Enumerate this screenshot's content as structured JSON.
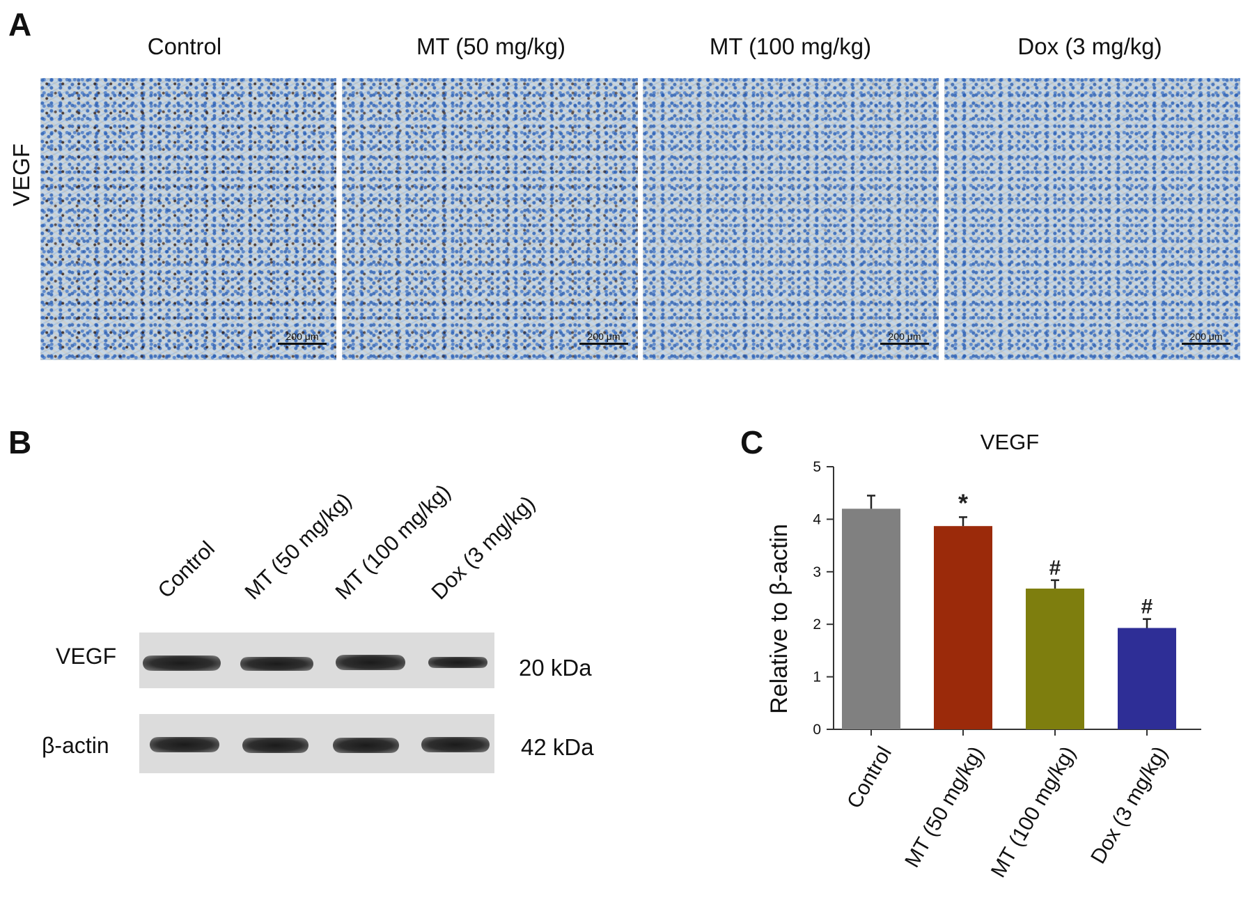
{
  "panel_a": {
    "letter": "A",
    "row_label": "VEGF",
    "columns": [
      {
        "title": "Control",
        "scale": "200 μm",
        "stain": 0.9
      },
      {
        "title": "MT (50 mg/kg)",
        "scale": "200 μm",
        "stain": 0.75
      },
      {
        "title": "MT (100 mg/kg)",
        "scale": "200 μm",
        "stain": 0.25
      },
      {
        "title": "Dox (3 mg/kg)",
        "scale": "200 μm",
        "stain": 0.05
      }
    ]
  },
  "panel_b": {
    "letter": "B",
    "lanes": [
      "Control",
      "MT (50 mg/kg)",
      "MT (100 mg/kg)",
      "Dox (3 mg/kg)"
    ],
    "blots": [
      {
        "label": "VEGF",
        "kda": "20 kDa"
      },
      {
        "label": "β-actin",
        "kda": "42 kDa"
      }
    ]
  },
  "panel_c": {
    "letter": "C",
    "chart_data": {
      "type": "bar",
      "title": "VEGF",
      "ylabel": "Relative to β-actin",
      "xlabel": "",
      "ylim": [
        0,
        5
      ],
      "yticks": [
        0,
        1,
        2,
        3,
        4,
        5
      ],
      "categories": [
        "Control",
        "MT (50 mg/kg)",
        "MT (100 mg/kg)",
        "Dox (3 mg/kg)"
      ],
      "values": [
        4.2,
        3.87,
        2.68,
        1.93
      ],
      "errors": [
        0.25,
        0.17,
        0.16,
        0.17
      ],
      "annotations": [
        "",
        "*",
        "#",
        "#"
      ],
      "colors": [
        "#808080",
        "#9b2a0a",
        "#7e7e0e",
        "#2e2e96"
      ],
      "grid": false
    }
  }
}
